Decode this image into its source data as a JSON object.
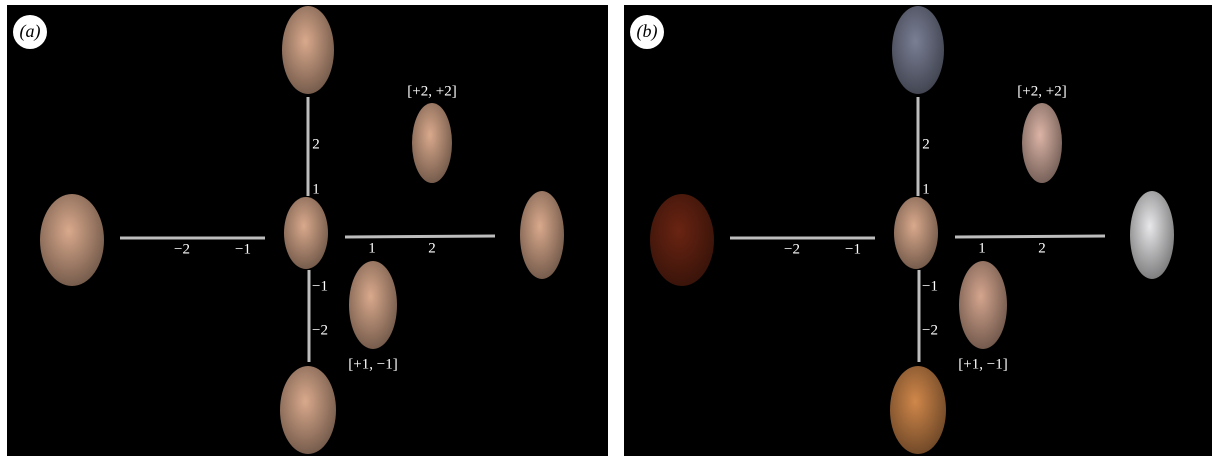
{
  "panels": [
    {
      "label": "(a)",
      "x_axis_labels": [
        "−2",
        "−1",
        "1",
        "2"
      ],
      "y_axis_labels": [
        "2",
        "1",
        "−1",
        "−2"
      ],
      "annotations": [
        "[+2, +2]",
        "[+1, −1]"
      ]
    },
    {
      "label": "(b)",
      "x_axis_labels": [
        "−2",
        "−1",
        "1",
        "2"
      ],
      "y_axis_labels": [
        "2",
        "1",
        "−1",
        "−2"
      ],
      "annotations": [
        "[+2, +2]",
        "[+1, −1]"
      ]
    }
  ]
}
